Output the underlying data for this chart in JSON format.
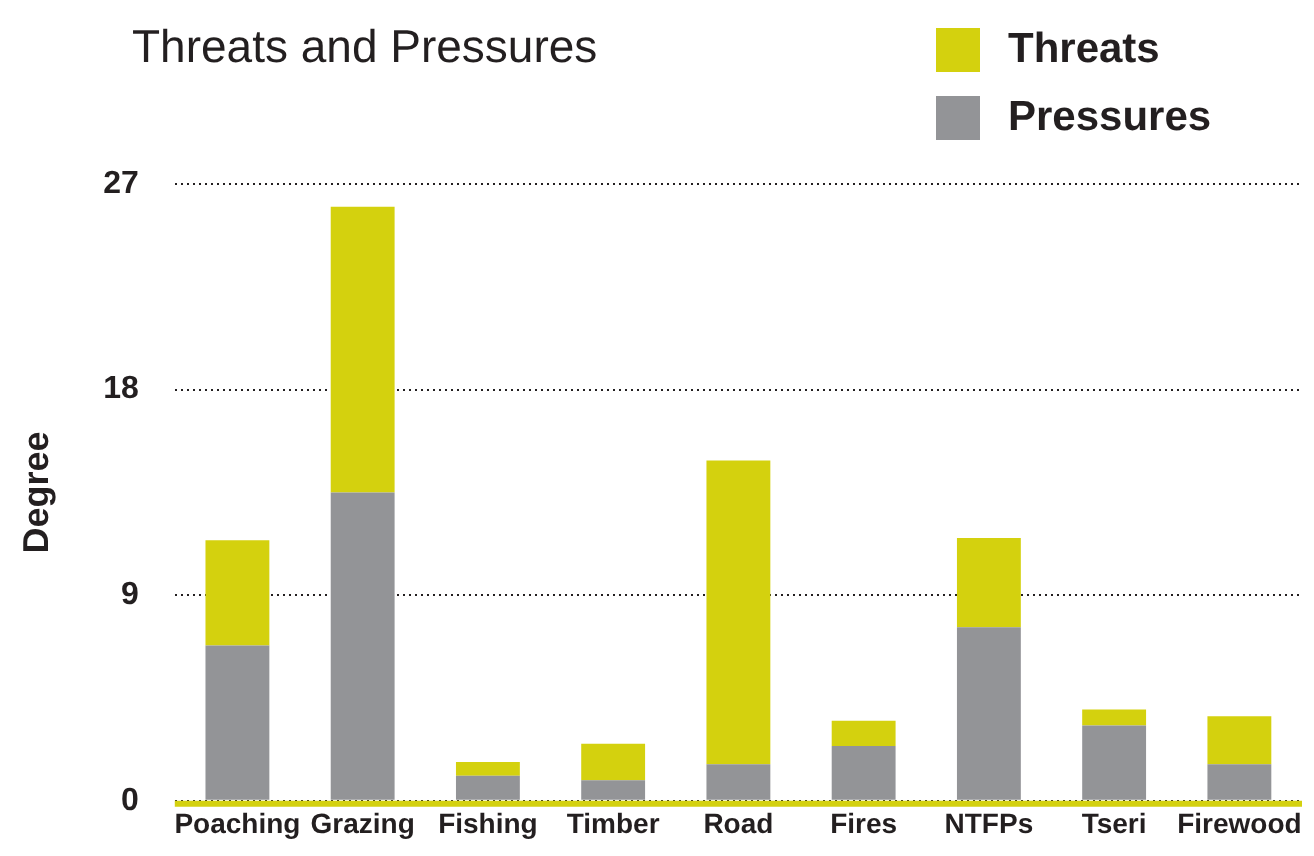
{
  "chart_data": {
    "type": "bar",
    "title": "Threats and Pressures",
    "ylabel": "Degree",
    "categories": [
      "Poaching",
      "Grazing",
      "Fishing",
      "Timber",
      "Road",
      "Fires",
      "NTFPs",
      "Tseri",
      "Firewood"
    ],
    "series": [
      {
        "name": "Pressures",
        "color": "#939497",
        "values": [
          6.8,
          13.5,
          1.1,
          0.9,
          1.6,
          2.4,
          7.6,
          3.3,
          1.6
        ]
      },
      {
        "name": "Threats",
        "color": "#d4d10e",
        "values": [
          4.6,
          12.5,
          0.6,
          1.6,
          13.3,
          1.1,
          3.9,
          0.7,
          2.1
        ]
      }
    ],
    "stacked": true,
    "ylim": [
      0,
      27
    ],
    "yticks": [
      0,
      9,
      18,
      27
    ],
    "grid": "y",
    "legend": "top right"
  }
}
